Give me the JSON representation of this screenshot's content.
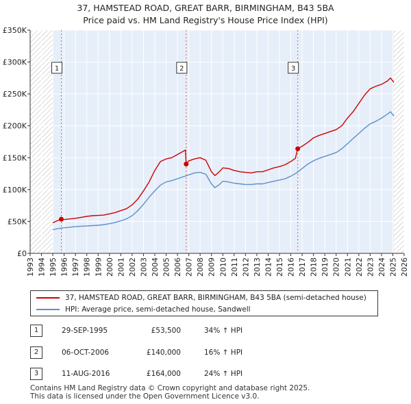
{
  "title_line1": "37, HAMSTEAD ROAD, GREAT BARR, BIRMINGHAM, B43 5BA",
  "title_line2": "Price paid vs. HM Land Registry's House Price Index (HPI)",
  "legend": {
    "property": "37, HAMSTEAD ROAD, GREAT BARR, BIRMINGHAM, B43 5BA (semi-detached house)",
    "hpi": "HPI: Average price, semi-detached house, Sandwell"
  },
  "transactions": [
    {
      "num": "1",
      "date": "29-SEP-1995",
      "price": "£53,500",
      "hpi": "34% ↑ HPI"
    },
    {
      "num": "2",
      "date": "06-OCT-2006",
      "price": "£140,000",
      "hpi": "16% ↑ HPI"
    },
    {
      "num": "3",
      "date": "11-AUG-2016",
      "price": "£164,000",
      "hpi": "24% ↑ HPI"
    }
  ],
  "footer_line1": "Contains HM Land Registry data © Crown copyright and database right 2025.",
  "footer_line2": "This data is licensed under the Open Government Licence v3.0.",
  "colors": {
    "property": "#cc0000",
    "hpi": "#5b8fc9",
    "plot_bg": "#e6eef9",
    "hatch": "#b3b3b3",
    "vline": "#cc6666"
  },
  "chart_data": {
    "type": "line",
    "xlim": [
      1993,
      2026
    ],
    "ylim": [
      0,
      350000
    ],
    "x_ticks": [
      "1993",
      "1994",
      "1995",
      "1996",
      "1997",
      "1998",
      "1999",
      "2000",
      "2001",
      "2002",
      "2003",
      "2004",
      "2005",
      "2006",
      "2007",
      "2008",
      "2009",
      "2010",
      "2011",
      "2012",
      "2013",
      "2014",
      "2015",
      "2016",
      "2017",
      "2018",
      "2019",
      "2020",
      "2021",
      "2022",
      "2023",
      "2024",
      "2025",
      "2026"
    ],
    "y_ticks": [
      {
        "value": 0,
        "label": "£0"
      },
      {
        "value": 50000,
        "label": "£50K"
      },
      {
        "value": 100000,
        "label": "£100K"
      },
      {
        "value": 150000,
        "label": "£150K"
      },
      {
        "value": 200000,
        "label": "£200K"
      },
      {
        "value": 250000,
        "label": "£250K"
      },
      {
        "value": 300000,
        "label": "£300K"
      },
      {
        "value": 350000,
        "label": "£350K"
      }
    ],
    "hatched_before": 1995.0,
    "hatched_after": 2025.1,
    "sales": [
      {
        "label": "1",
        "x": 1995.75,
        "y": 53500
      },
      {
        "label": "2",
        "x": 2006.77,
        "y": 140000
      },
      {
        "label": "3",
        "x": 2016.61,
        "y": 164000
      }
    ],
    "series": [
      {
        "name": "37, HAMSTEAD ROAD, GREAT BARR, BIRMINGHAM, B43 5BA (semi-detached house)",
        "color": "#cc0000",
        "points": [
          [
            1995.0,
            48000
          ],
          [
            1995.5,
            52000
          ],
          [
            1995.75,
            53500
          ],
          [
            1996.0,
            53000
          ],
          [
            1996.5,
            54000
          ],
          [
            1997.0,
            55000
          ],
          [
            1997.5,
            56500
          ],
          [
            1998.0,
            58000
          ],
          [
            1998.5,
            59000
          ],
          [
            1999.0,
            59500
          ],
          [
            1999.5,
            60000
          ],
          [
            2000.0,
            62000
          ],
          [
            2000.5,
            64000
          ],
          [
            2001.0,
            67000
          ],
          [
            2001.5,
            70000
          ],
          [
            2002.0,
            76000
          ],
          [
            2002.5,
            85000
          ],
          [
            2003.0,
            98000
          ],
          [
            2003.5,
            112000
          ],
          [
            2004.0,
            130000
          ],
          [
            2004.5,
            144000
          ],
          [
            2005.0,
            148000
          ],
          [
            2005.5,
            150000
          ],
          [
            2006.0,
            155000
          ],
          [
            2006.5,
            160000
          ],
          [
            2006.7,
            162000
          ],
          [
            2006.77,
            140000
          ],
          [
            2007.0,
            145000
          ],
          [
            2007.5,
            148000
          ],
          [
            2008.0,
            150000
          ],
          [
            2008.5,
            146000
          ],
          [
            2009.0,
            128000
          ],
          [
            2009.3,
            122000
          ],
          [
            2009.7,
            128000
          ],
          [
            2010.0,
            134000
          ],
          [
            2010.5,
            133000
          ],
          [
            2011.0,
            130000
          ],
          [
            2011.5,
            128000
          ],
          [
            2012.0,
            127000
          ],
          [
            2012.5,
            126000
          ],
          [
            2013.0,
            128000
          ],
          [
            2013.5,
            128000
          ],
          [
            2014.0,
            131000
          ],
          [
            2014.5,
            134000
          ],
          [
            2015.0,
            136000
          ],
          [
            2015.5,
            139000
          ],
          [
            2016.0,
            144000
          ],
          [
            2016.4,
            149000
          ],
          [
            2016.61,
            164000
          ],
          [
            2017.0,
            168000
          ],
          [
            2017.5,
            174000
          ],
          [
            2018.0,
            181000
          ],
          [
            2018.5,
            185000
          ],
          [
            2019.0,
            188000
          ],
          [
            2019.5,
            191000
          ],
          [
            2020.0,
            194000
          ],
          [
            2020.5,
            200000
          ],
          [
            2021.0,
            212000
          ],
          [
            2021.5,
            222000
          ],
          [
            2022.0,
            235000
          ],
          [
            2022.5,
            248000
          ],
          [
            2023.0,
            258000
          ],
          [
            2023.5,
            262000
          ],
          [
            2024.0,
            265000
          ],
          [
            2024.5,
            270000
          ],
          [
            2024.8,
            275000
          ],
          [
            2025.1,
            268000
          ]
        ]
      },
      {
        "name": "HPI: Average price, semi-detached house, Sandwell",
        "color": "#5b8fc9",
        "points": [
          [
            1995.0,
            37000
          ],
          [
            1995.5,
            39000
          ],
          [
            1996.0,
            40000
          ],
          [
            1996.5,
            41000
          ],
          [
            1997.0,
            42000
          ],
          [
            1997.5,
            42500
          ],
          [
            1998.0,
            43000
          ],
          [
            1998.5,
            43500
          ],
          [
            1999.0,
            44000
          ],
          [
            1999.5,
            45000
          ],
          [
            2000.0,
            46500
          ],
          [
            2000.5,
            48500
          ],
          [
            2001.0,
            51000
          ],
          [
            2001.5,
            54000
          ],
          [
            2002.0,
            59000
          ],
          [
            2002.5,
            67000
          ],
          [
            2003.0,
            77000
          ],
          [
            2003.5,
            88000
          ],
          [
            2004.0,
            98000
          ],
          [
            2004.5,
            107000
          ],
          [
            2005.0,
            112000
          ],
          [
            2005.5,
            114000
          ],
          [
            2006.0,
            117000
          ],
          [
            2006.5,
            120000
          ],
          [
            2007.0,
            123000
          ],
          [
            2007.5,
            126000
          ],
          [
            2008.0,
            127000
          ],
          [
            2008.5,
            124000
          ],
          [
            2009.0,
            109000
          ],
          [
            2009.3,
            103000
          ],
          [
            2009.7,
            108000
          ],
          [
            2010.0,
            113000
          ],
          [
            2010.5,
            112000
          ],
          [
            2011.0,
            110000
          ],
          [
            2011.5,
            109000
          ],
          [
            2012.0,
            108000
          ],
          [
            2012.5,
            108000
          ],
          [
            2013.0,
            109000
          ],
          [
            2013.5,
            109000
          ],
          [
            2014.0,
            111000
          ],
          [
            2014.5,
            113000
          ],
          [
            2015.0,
            115000
          ],
          [
            2015.5,
            117000
          ],
          [
            2016.0,
            121000
          ],
          [
            2016.5,
            126000
          ],
          [
            2017.0,
            133000
          ],
          [
            2017.5,
            140000
          ],
          [
            2018.0,
            145000
          ],
          [
            2018.5,
            149000
          ],
          [
            2019.0,
            152000
          ],
          [
            2019.5,
            155000
          ],
          [
            2020.0,
            158000
          ],
          [
            2020.5,
            164000
          ],
          [
            2021.0,
            172000
          ],
          [
            2021.5,
            180000
          ],
          [
            2022.0,
            188000
          ],
          [
            2022.5,
            196000
          ],
          [
            2023.0,
            203000
          ],
          [
            2023.5,
            207000
          ],
          [
            2024.0,
            212000
          ],
          [
            2024.5,
            218000
          ],
          [
            2024.8,
            222000
          ],
          [
            2025.1,
            215000
          ]
        ]
      }
    ]
  }
}
